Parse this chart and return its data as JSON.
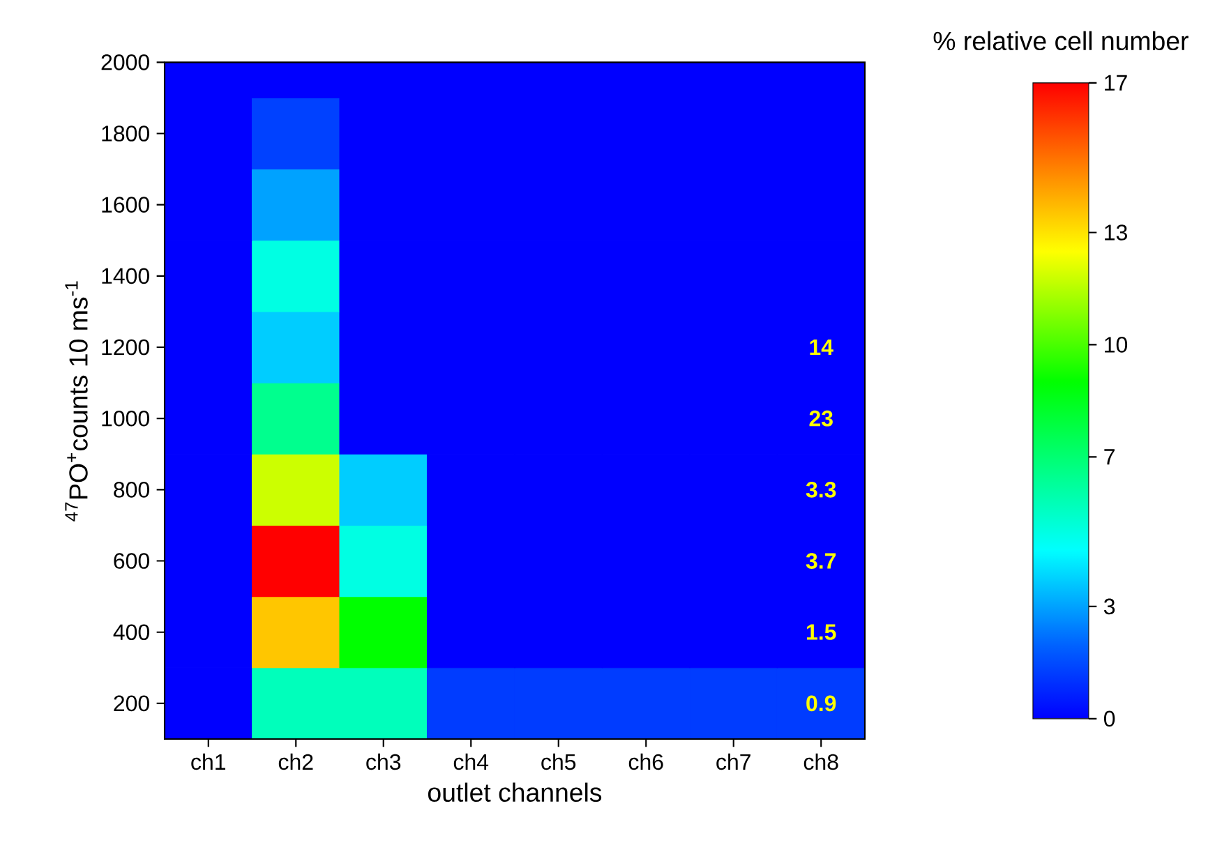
{
  "chart_data": {
    "type": "heatmap",
    "xlabel": "outlet channels",
    "ylabel": "$^{47}$PO$^{+}$counts 10 ms$^{-1}$",
    "clabel": "% relative cell number",
    "categories": [
      "ch1",
      "ch2",
      "ch3",
      "ch4",
      "ch5",
      "ch6",
      "ch7",
      "ch8"
    ],
    "y_categories": [
      "2000",
      "1800",
      "1600",
      "1400",
      "1200",
      "1000",
      "800",
      "600",
      "400",
      "200"
    ],
    "cells": [
      [
        0,
        0,
        0,
        0,
        0,
        0,
        0,
        0
      ],
      [
        0,
        1.3,
        0,
        0,
        0,
        0,
        0,
        0
      ],
      [
        0,
        3,
        0,
        0,
        0,
        0,
        0,
        0
      ],
      [
        0,
        5,
        0,
        0,
        0,
        0,
        0,
        0
      ],
      [
        0,
        3.7,
        0,
        0,
        0,
        0,
        0,
        0
      ],
      [
        0,
        6.5,
        0,
        0,
        0,
        0,
        0,
        0
      ],
      [
        0,
        11.8,
        3.7,
        0,
        0,
        0,
        0,
        0
      ],
      [
        0,
        17,
        5,
        0,
        0,
        0,
        0,
        0
      ],
      [
        0,
        13.5,
        9,
        0,
        0,
        0,
        0,
        0
      ],
      [
        0,
        5.7,
        5.7,
        1.2,
        1.2,
        1.2,
        1.2,
        1.2
      ]
    ],
    "clim": [
      0,
      17
    ],
    "cticks": [
      0,
      3,
      7,
      10,
      13,
      17
    ],
    "annotations": [
      "14",
      "23",
      "3.3",
      "3.7",
      "1.5",
      "0.9"
    ]
  }
}
